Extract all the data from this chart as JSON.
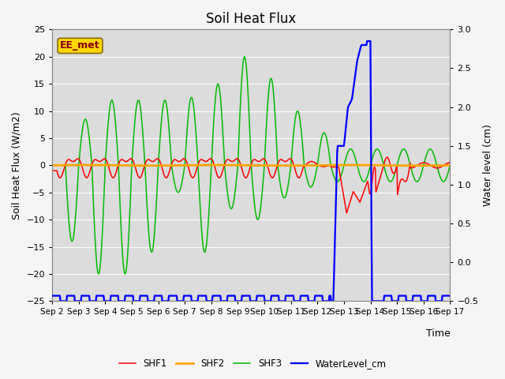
{
  "title": "Soil Heat Flux",
  "ylabel_left": "Soil Heat Flux (W/m2)",
  "ylabel_right": "Water level (cm)",
  "xlabel": "Time",
  "ylim_left": [
    -25,
    25
  ],
  "ylim_right": [
    -0.5,
    3.0
  ],
  "xtick_labels": [
    "Sep 2",
    "Sep 3",
    "Sep 4",
    "Sep 5",
    "Sep 6",
    "Sep 7",
    "Sep 8",
    "Sep 9",
    "Sep 10",
    "Sep 11",
    "Sep 12",
    "Sep 13",
    "Sep 14",
    "Sep 15",
    "Sep 16",
    "Sep 17"
  ],
  "legend_labels": [
    "SHF1",
    "SHF2",
    "SHF3",
    "WaterLevel_cm"
  ],
  "colors": {
    "SHF1": "#ff0000",
    "SHF2": "#ffa500",
    "SHF3": "#00bb00",
    "WaterLevel_cm": "#0000ff"
  },
  "annotation_text": "EE_met",
  "annotation_color": "#8B0000",
  "annotation_bg": "#ffd700",
  "bg_color": "#dcdcdc",
  "grid_color": "#ffffff",
  "linewidth": 1.1
}
